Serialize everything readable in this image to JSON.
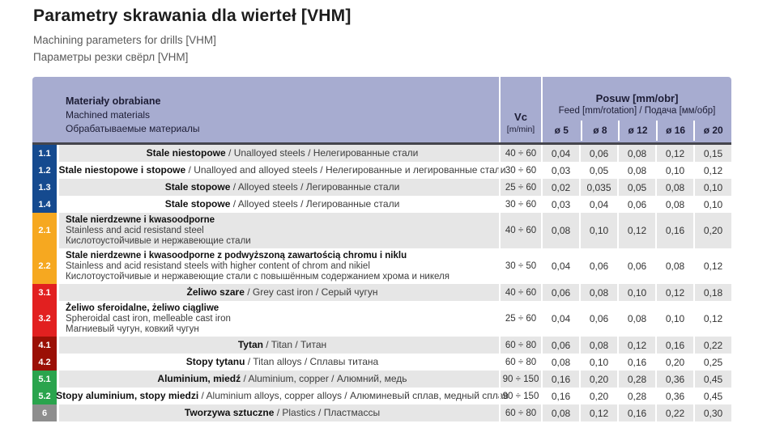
{
  "page": {
    "title": "Parametry skrawania dla wierteł [VHM]",
    "subtitle_en": "Machining parameters for drills [VHM]",
    "subtitle_ru": "Параметры резки свёрл [VHM]"
  },
  "table": {
    "header": {
      "materials_pl": "Materiały obrabiane",
      "materials_en": "Machined materials",
      "materials_ru": "Обрабатываемые материалы",
      "vc_label": "Vc",
      "vc_unit": "[m/min]",
      "feed_title": "Posuw [mm/obr]",
      "feed_subtitle": "Feed [mm/rotation] / Подача [мм/обр]",
      "diameters": [
        "ø 5",
        "ø 8",
        "ø 12",
        "ø 16",
        "ø 20"
      ]
    },
    "colors": {
      "header_bg": "#a7acd0",
      "row_alt_bg": "#e6e6e6",
      "group1": "#154a8f",
      "group2": "#f6a820",
      "group3": "#e22020",
      "group4": "#9b1006",
      "group5": "#2aa44d",
      "group6": "#8e8e8e"
    },
    "rows": [
      {
        "id": "1.1",
        "group": "group1",
        "shaded": true,
        "multiline": false,
        "pl": "Stale niestopowe",
        "en": "Unalloyed steels",
        "ru": "Нелегированные стали",
        "vc": "40 ÷ 60",
        "feeds": [
          "0,04",
          "0,06",
          "0,08",
          "0,12",
          "0,15"
        ]
      },
      {
        "id": "1.2",
        "group": "group1",
        "shaded": false,
        "multiline": false,
        "pl": "Stale niestopowe i stopowe",
        "en": "Unalloyed and alloyed steels",
        "ru": "Нелегированные и легированные стали",
        "vc": "30 ÷ 60",
        "feeds": [
          "0,03",
          "0,05",
          "0,08",
          "0,10",
          "0,12"
        ]
      },
      {
        "id": "1.3",
        "group": "group1",
        "shaded": true,
        "multiline": false,
        "pl": "Stale stopowe",
        "en": "Alloyed steels",
        "ru": "Легированные стали",
        "vc": "25 ÷ 60",
        "feeds": [
          "0,02",
          "0,035",
          "0,05",
          "0,08",
          "0,10"
        ]
      },
      {
        "id": "1.4",
        "group": "group1",
        "shaded": false,
        "multiline": false,
        "pl": "Stale stopowe",
        "en": "Alloyed steels",
        "ru": "Легированные стали",
        "vc": "30 ÷ 60",
        "feeds": [
          "0,03",
          "0,04",
          "0,06",
          "0,08",
          "0,10"
        ]
      },
      {
        "id": "2.1",
        "group": "group2",
        "shaded": true,
        "multiline": true,
        "pl": "Stale nierdzewne i kwasoodporne",
        "en": "Stainless and acid resistand steel",
        "ru": "Кислотоустойчивые и нержавеющие стали",
        "vc": "40 ÷ 60",
        "feeds": [
          "0,08",
          "0,10",
          "0,12",
          "0,16",
          "0,20"
        ]
      },
      {
        "id": "2.2",
        "group": "group2",
        "shaded": false,
        "multiline": true,
        "pl": "Stale nierdzewne i kwasoodporne z podwyższoną zawartością chromu i niklu",
        "en": "Stainless and acid resistand steels with higher content of chrom and nikiel",
        "ru": "Кислотоустойчивые и нержавеющие стали с повышённым содержанием хрома и никеля",
        "vc": "30 ÷ 50",
        "feeds": [
          "0,04",
          "0,06",
          "0,06",
          "0,08",
          "0,12"
        ]
      },
      {
        "id": "3.1",
        "group": "group3",
        "shaded": true,
        "multiline": false,
        "pl": "Żeliwo szare",
        "en": "Grey cast iron",
        "ru": "Серый чугун",
        "vc": "40 ÷ 60",
        "feeds": [
          "0,06",
          "0,08",
          "0,10",
          "0,12",
          "0,18"
        ]
      },
      {
        "id": "3.2",
        "group": "group3",
        "shaded": false,
        "multiline": true,
        "pl": "Żeliwo sferoidalne, żeliwo ciągliwe",
        "en": "Spheroidal cast iron, melleable cast iron",
        "ru": "Магниевый чугун, ковкий чугун",
        "vc": "25 ÷ 60",
        "feeds": [
          "0,04",
          "0,06",
          "0,08",
          "0,10",
          "0,12"
        ]
      },
      {
        "id": "4.1",
        "group": "group4",
        "shaded": true,
        "multiline": false,
        "pl": "Tytan",
        "en": "Titan",
        "ru": "Титан",
        "vc": "60 ÷ 80",
        "feeds": [
          "0,06",
          "0,08",
          "0,12",
          "0,16",
          "0,22"
        ]
      },
      {
        "id": "4.2",
        "group": "group4",
        "shaded": false,
        "multiline": false,
        "pl": "Stopy tytanu",
        "en": "Titan alloys",
        "ru": "Сплавы титана",
        "vc": "60 ÷ 80",
        "feeds": [
          "0,08",
          "0,10",
          "0,16",
          "0,20",
          "0,25"
        ]
      },
      {
        "id": "5.1",
        "group": "group5",
        "shaded": true,
        "multiline": false,
        "pl": "Aluminium, miedź",
        "en": "Aluminium, copper",
        "ru": "Алюмний, медь",
        "vc": "90 ÷ 150",
        "feeds": [
          "0,16",
          "0,20",
          "0,28",
          "0,36",
          "0,45"
        ]
      },
      {
        "id": "5.2",
        "group": "group5",
        "shaded": false,
        "multiline": false,
        "pl": "Stopy aluminium, stopy miedzi",
        "en": "Aluminium alloys, copper alloys",
        "ru": "Алюминевый сплав, медный сплав",
        "vc": "90 ÷ 150",
        "feeds": [
          "0,16",
          "0,20",
          "0,28",
          "0,36",
          "0,45"
        ]
      },
      {
        "id": "6",
        "group": "group6",
        "shaded": true,
        "multiline": false,
        "pl": "Tworzywa sztuczne",
        "en": "Plastics",
        "ru": "Пластмассы",
        "vc": "60 ÷ 80",
        "feeds": [
          "0,08",
          "0,12",
          "0,16",
          "0,22",
          "0,30"
        ]
      }
    ]
  }
}
